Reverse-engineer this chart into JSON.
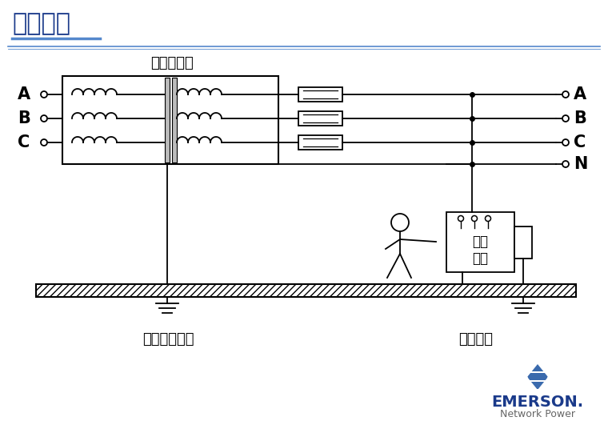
{
  "title": "保护接地",
  "subtitle": "配电变压器",
  "label_abc_left": [
    "A",
    "B",
    "C"
  ],
  "label_abcn_right": [
    "A",
    "B",
    "C",
    "N"
  ],
  "label_ground_left": "交流工作接地",
  "label_ground_right": "接地保护",
  "emerson_text": "EMERSON.",
  "network_power_text": "Network Power",
  "bg_color": "#ffffff",
  "line_color": "#000000",
  "title_color": "#1a3a8a",
  "blue_line_color": "#5588cc",
  "emerson_blue": "#1a3a8a",
  "emerson_logo_blue": "#3366aa"
}
